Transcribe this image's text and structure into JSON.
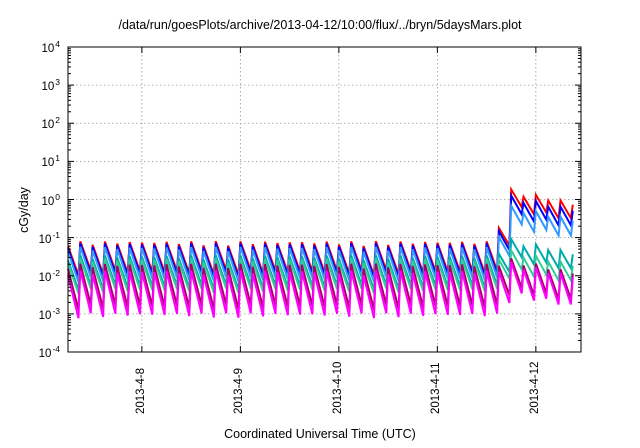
{
  "chart_data": {
    "type": "line",
    "title": "/data/run/goesPlots/archive/2013-04-12/10:00/flux/../bryn/5daysMars.plot",
    "xlabel": "Coordinated Universal Time (UTC)",
    "ylabel": "cGy/day",
    "yscale": "log",
    "ylim": [
      0.0001,
      10000
    ],
    "xlim": [
      "2013-04-07 06:00",
      "2013-04-12 11:00"
    ],
    "grid": true,
    "y_ticks": [
      {
        "base": "10",
        "exp": "-4"
      },
      {
        "base": "10",
        "exp": "-3"
      },
      {
        "base": "10",
        "exp": "-2"
      },
      {
        "base": "10",
        "exp": "-1"
      },
      {
        "base": "10",
        "exp": "0"
      },
      {
        "base": "10",
        "exp": "1"
      },
      {
        "base": "10",
        "exp": "2"
      },
      {
        "base": "10",
        "exp": "3"
      },
      {
        "base": "10",
        "exp": "4"
      }
    ],
    "x_ticks": [
      "2013-4-8",
      "2013-4-9",
      "2013-4-10",
      "2013-4-11",
      "2013-4-12"
    ],
    "sawtooth_period_hours": 3,
    "series": [
      {
        "color": "#ff0000",
        "quiet_peak": 0.07,
        "quiet_trough": 0.012,
        "event_peak": 1.6
      },
      {
        "color": "#0000ff",
        "quiet_peak": 0.062,
        "quiet_trough": 0.01,
        "event_peak": 1.1
      },
      {
        "color": "#3399ff",
        "quiet_peak": 0.05,
        "quiet_trough": 0.008,
        "event_peak": 0.6
      },
      {
        "color": "#00aaaa",
        "quiet_peak": 0.03,
        "quiet_trough": 0.005,
        "event_peak": 0.08
      },
      {
        "color": "#33cc99",
        "quiet_peak": 0.025,
        "quiet_trough": 0.004,
        "event_peak": 0.04
      },
      {
        "color": "#aa0066",
        "quiet_peak": 0.018,
        "quiet_trough": 0.0015,
        "event_peak": 0.025
      },
      {
        "color": "#ff00ff",
        "quiet_peak": 0.012,
        "quiet_trough": 0.0009,
        "event_peak": 0.02
      }
    ]
  }
}
